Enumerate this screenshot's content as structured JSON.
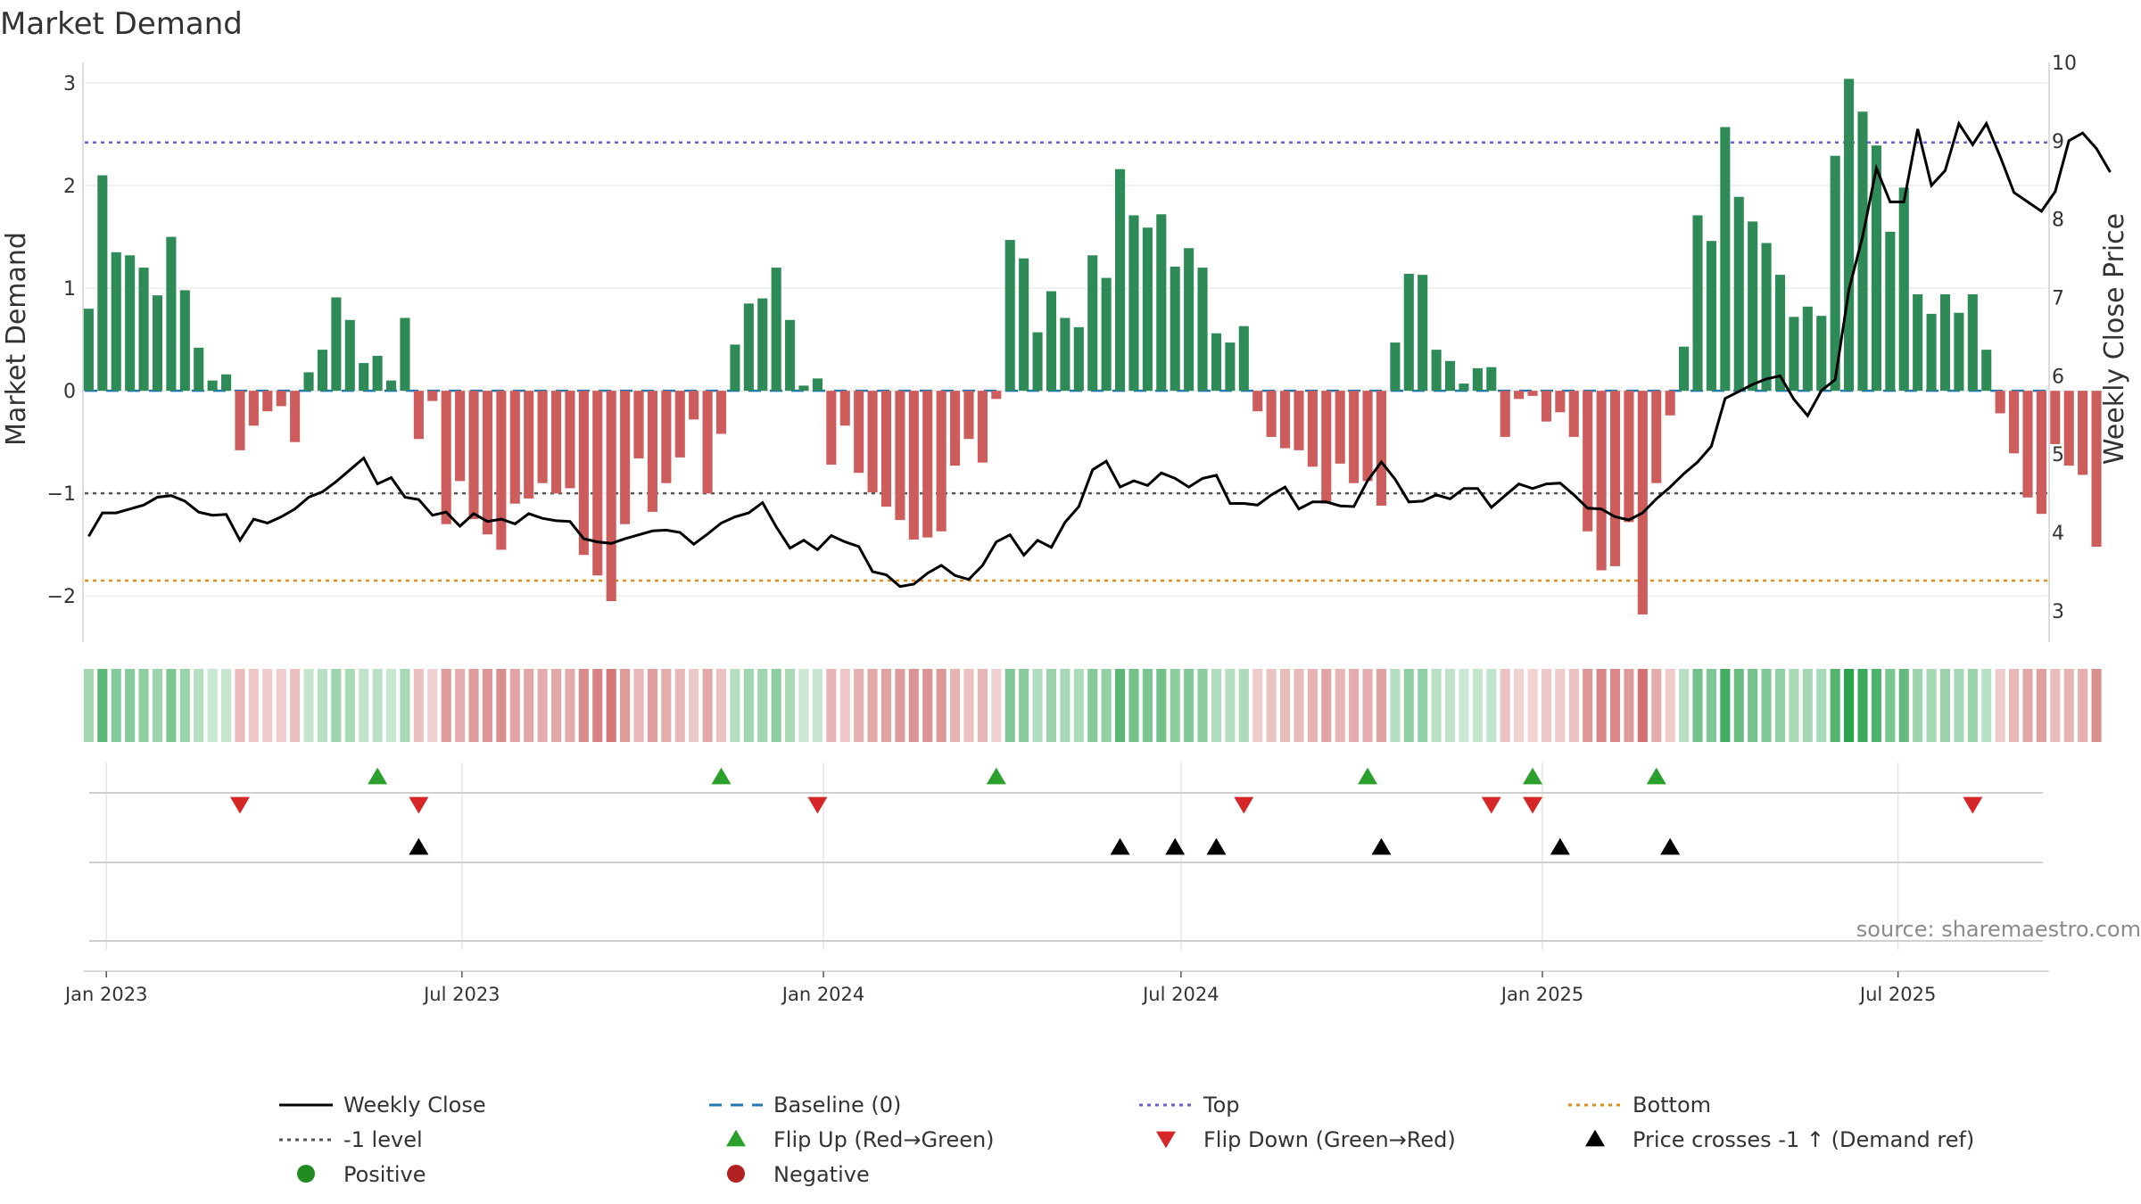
{
  "chart_data": {
    "type": "bar",
    "title": "Market Demand",
    "ylabel_left": "Market Demand",
    "ylabel_right": "Weekly Close Price",
    "ylim_left": [
      -2.45,
      3.2
    ],
    "ylim_right": [
      2.6,
      10.0
    ],
    "yticks_left": [
      3,
      2,
      1,
      0,
      -1,
      -2
    ],
    "yticks_left_labels": [
      "3",
      "2",
      "1",
      "0",
      "−1",
      "−2"
    ],
    "yticks_right": [
      10,
      9,
      8,
      7,
      6,
      5,
      4,
      3
    ],
    "x_start": "2022-12-21",
    "x_end": "2025-09-15",
    "week_start": "2022-12-23",
    "xticks": [
      {
        "date": "2023-01-01",
        "label": "Jan 2023"
      },
      {
        "date": "2023-07-01",
        "label": "Jul 2023"
      },
      {
        "date": "2024-01-01",
        "label": "Jan 2024"
      },
      {
        "date": "2024-07-01",
        "label": "Jul 2024"
      },
      {
        "date": "2025-01-01",
        "label": "Jan 2025"
      },
      {
        "date": "2025-07-01",
        "label": "Jul 2025"
      }
    ],
    "reference_lines": {
      "top": 2.42,
      "bottom": -1.85,
      "minus_one": -1,
      "baseline": 0
    },
    "demand": [
      0.8,
      2.1,
      1.35,
      1.32,
      1.2,
      0.93,
      1.5,
      0.98,
      0.42,
      0.1,
      0.16,
      -0.58,
      -0.34,
      -0.2,
      -0.15,
      -0.5,
      0.18,
      0.4,
      0.91,
      0.69,
      0.27,
      0.34,
      0.1,
      0.71,
      -0.47,
      -0.1,
      -1.3,
      -0.88,
      -1.25,
      -1.4,
      -1.55,
      -1.1,
      -1.05,
      -0.9,
      -1.0,
      -0.95,
      -1.6,
      -1.8,
      -2.05,
      -1.3,
      -0.66,
      -1.18,
      -0.9,
      -0.65,
      -0.28,
      -1.0,
      -0.42,
      0.45,
      0.85,
      0.9,
      1.2,
      0.69,
      0.05,
      0.12,
      -0.72,
      -0.34,
      -0.8,
      -0.99,
      -1.13,
      -1.26,
      -1.45,
      -1.43,
      -1.37,
      -0.73,
      -0.47,
      -0.7,
      -0.08,
      1.47,
      1.29,
      0.57,
      0.97,
      0.71,
      0.62,
      1.32,
      1.1,
      2.16,
      1.71,
      1.59,
      1.72,
      1.21,
      1.39,
      1.2,
      0.56,
      0.47,
      0.63,
      -0.2,
      -0.45,
      -0.56,
      -0.58,
      -0.74,
      -1.1,
      -0.71,
      -0.9,
      -0.88,
      -1.12,
      0.47,
      1.14,
      1.13,
      0.4,
      0.29,
      0.07,
      0.22,
      0.23,
      -0.45,
      -0.08,
      -0.05,
      -0.3,
      -0.21,
      -0.45,
      -1.37,
      -1.75,
      -1.71,
      -1.28,
      -2.18,
      -0.9,
      -0.24,
      0.43,
      1.71,
      1.46,
      2.57,
      1.89,
      1.65,
      1.44,
      1.13,
      0.72,
      0.82,
      0.73,
      2.29,
      3.04,
      2.72,
      2.39,
      1.55,
      1.98,
      0.94,
      0.75,
      0.94,
      0.76,
      0.94,
      0.4,
      -0.22,
      -0.61,
      -1.04,
      -1.2,
      -0.52,
      -0.73,
      -0.82,
      -1.52
    ],
    "close": [
      3.95,
      4.25,
      4.25,
      4.3,
      4.35,
      4.45,
      4.47,
      4.4,
      4.26,
      4.22,
      4.23,
      3.9,
      4.17,
      4.12,
      4.2,
      4.3,
      4.45,
      4.52,
      4.65,
      4.8,
      4.95,
      4.62,
      4.7,
      4.45,
      4.42,
      4.22,
      4.26,
      4.08,
      4.24,
      4.14,
      4.17,
      4.11,
      4.24,
      4.18,
      4.15,
      4.14,
      3.92,
      3.88,
      3.86,
      3.92,
      3.97,
      4.02,
      4.03,
      4.0,
      3.85,
      3.98,
      4.12,
      4.2,
      4.25,
      4.38,
      4.07,
      3.8,
      3.9,
      3.78,
      3.96,
      3.88,
      3.82,
      3.5,
      3.46,
      3.31,
      3.34,
      3.48,
      3.58,
      3.45,
      3.4,
      3.58,
      3.88,
      3.97,
      3.71,
      3.9,
      3.81,
      4.13,
      4.33,
      4.8,
      4.91,
      4.58,
      4.66,
      4.6,
      4.76,
      4.69,
      4.58,
      4.69,
      4.73,
      4.37,
      4.37,
      4.35,
      4.48,
      4.58,
      4.3,
      4.39,
      4.39,
      4.34,
      4.33,
      4.66,
      4.9,
      4.68,
      4.39,
      4.4,
      4.48,
      4.43,
      4.56,
      4.56,
      4.32,
      4.47,
      4.62,
      4.56,
      4.62,
      4.63,
      4.48,
      4.31,
      4.3,
      4.2,
      4.16,
      4.25,
      4.43,
      4.58,
      4.75,
      4.9,
      5.1,
      5.71,
      5.8,
      5.89,
      5.96,
      6.0,
      5.7,
      5.49,
      5.81,
      5.95,
      7.1,
      7.78,
      8.65,
      8.22,
      8.22,
      9.15,
      8.43,
      8.62,
      9.22,
      8.95,
      9.22,
      8.8,
      8.34,
      8.22,
      8.1,
      8.35,
      9.0,
      9.1,
      8.9,
      8.6
    ],
    "flip_up_weeks": [
      21,
      46,
      66,
      93,
      105,
      114
    ],
    "flip_down_weeks": [
      11,
      24,
      53,
      84,
      102,
      105,
      137
    ],
    "price_cross_weeks": [
      24,
      75,
      79,
      82,
      94,
      107,
      115
    ],
    "legend": [
      {
        "label": "Weekly Close",
        "kind": "line",
        "color": "#000000"
      },
      {
        "label": "Baseline (0)",
        "kind": "dash",
        "color": "#1f77b4"
      },
      {
        "label": "Top",
        "kind": "dot",
        "color": "#6a5fd6"
      },
      {
        "label": "Bottom",
        "kind": "dot",
        "color": "#e08d1a"
      },
      {
        "label": "-1 level",
        "kind": "dot",
        "color": "#555555"
      },
      {
        "label": "Flip Up (Red→Green)",
        "kind": "triangle-up",
        "color": "#2ca02c"
      },
      {
        "label": "Flip Down (Green→Red)",
        "kind": "triangle-down",
        "color": "#d62728"
      },
      {
        "label": "Price crosses -1 ↑ (Demand ref)",
        "kind": "triangle-up",
        "color": "#000000"
      },
      {
        "label": "Positive",
        "kind": "circle",
        "color": "#228b22"
      },
      {
        "label": "Negative",
        "kind": "circle",
        "color": "#b22222"
      }
    ],
    "source": "source: sharemaestro.com"
  },
  "colors": {
    "positive_bar": "#2e8b57",
    "negative_bar": "#cd5c5c",
    "heat_positive": "#1f9e45",
    "heat_negative": "#c24141",
    "top": "#6a5fd6",
    "bottom": "#e08d1a",
    "minus_one": "#555555",
    "baseline": "#1f77b4",
    "close_line": "#000000",
    "flip_up": "#2ca02c",
    "flip_down": "#d62728",
    "cross": "#000000"
  }
}
